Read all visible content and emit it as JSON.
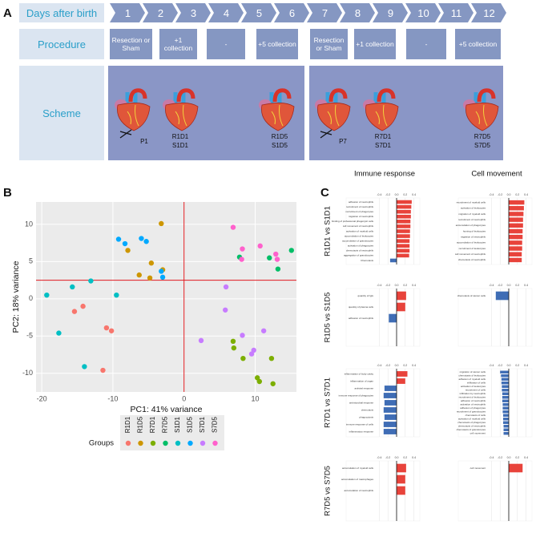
{
  "panel_letters": [
    "A",
    "B",
    "C"
  ],
  "panel_a": {
    "row_labels": [
      "Days after birth",
      "Procedure",
      "Scheme"
    ],
    "days": [
      "1",
      "2",
      "3",
      "4",
      "5",
      "6",
      "7",
      "8",
      "9",
      "10",
      "11",
      "12"
    ],
    "procedure": [
      "Resection or Sham",
      "+1 collection",
      "-",
      "+5 collection",
      "Resection or Sham",
      "+1 collection",
      "-",
      "+5 collection"
    ],
    "scheme_labels": [
      "P1",
      "R1D1",
      "S1D1",
      "R1D5",
      "S1D5",
      "P7",
      "R7D1",
      "S7D1",
      "R7D5",
      "S7D5"
    ]
  },
  "panel_c": {
    "columns": [
      "Immune response",
      "Cell movement"
    ],
    "rows": [
      "R1D1 vs S1D1",
      "R1D5 vs S1D5",
      "R7D1 vs S7D1",
      "R7D5 vs S7D5"
    ]
  },
  "chart_data": [
    {
      "type": "scatter",
      "xlabel": "PC1: 41% variance",
      "ylabel": "PC2: 18% variance",
      "xlim": [
        -20.8,
        15.8
      ],
      "ylim": [
        -12.5,
        13
      ],
      "xticks": [
        -20,
        -10,
        0,
        10
      ],
      "yticks": [
        -10,
        -5,
        0,
        5,
        10
      ],
      "grid": true,
      "reference_lines": {
        "x": [
          0
        ],
        "y": [
          2.5
        ],
        "color": "#e0191f"
      },
      "legend_title": "Groups",
      "legend_position": "bottom",
      "series": [
        {
          "name": "R1D1",
          "color": "#F8766D",
          "x": [
            -15.4,
            -14.2,
            -10.9,
            -10.2,
            -11.4
          ],
          "values": [
            -1.7,
            -1.0,
            -3.9,
            -4.3,
            -9.6
          ]
        },
        {
          "name": "R1D5",
          "color": "#CD9600",
          "x": [
            -7.9,
            -3.2,
            -4.6,
            -6.3,
            -4.8,
            -3.0
          ],
          "values": [
            6.5,
            10.1,
            4.8,
            3.2,
            2.8,
            3.9
          ]
        },
        {
          "name": "R7D1",
          "color": "#7CAE00",
          "x": [
            6.9,
            7.0,
            8.3,
            10.3,
            10.6,
            12.3,
            12.5
          ],
          "values": [
            -5.7,
            -6.6,
            -8.0,
            -10.6,
            -11.1,
            -8.0,
            -11.4
          ]
        },
        {
          "name": "R7D5",
          "color": "#00BE67",
          "x": [
            7.8,
            12.0,
            13.2,
            15.1
          ],
          "values": [
            5.6,
            5.5,
            4.0,
            6.5
          ]
        },
        {
          "name": "S1D1",
          "color": "#00BFC4",
          "x": [
            -19.3,
            -17.6,
            -15.7,
            -13.1,
            -9.5,
            -14.0
          ],
          "values": [
            0.5,
            -4.6,
            1.6,
            2.4,
            0.5,
            -9.1
          ]
        },
        {
          "name": "S1D5",
          "color": "#00A9FF",
          "x": [
            -9.2,
            -8.3,
            -6.0,
            -5.3,
            -3.0,
            -3.2
          ],
          "values": [
            8.0,
            7.4,
            8.1,
            7.7,
            2.9,
            3.7
          ]
        },
        {
          "name": "S7D1",
          "color": "#C77CFF",
          "x": [
            5.9,
            5.8,
            2.4,
            8.2,
            11.2,
            9.8,
            9.5
          ],
          "values": [
            1.6,
            -1.5,
            -5.6,
            -4.9,
            -4.3,
            -6.9,
            -7.4
          ]
        },
        {
          "name": "S7D5",
          "color": "#FF61CC",
          "x": [
            6.9,
            8.2,
            8.1,
            10.7,
            12.9,
            13.1
          ],
          "values": [
            9.6,
            6.7,
            5.3,
            7.1,
            6.0,
            5.3
          ]
        }
      ]
    },
    {
      "type": "barh",
      "color": "#e8433b",
      "negative_color": "#3f6db5",
      "xlim": [
        -0.5,
        0.5
      ],
      "xticks": [
        -0.4,
        -0.2,
        {
          "value": 0,
          "label": "0.0"
        },
        0.2,
        0.4
      ],
      "categories": [
        "adhesion of neutrophils",
        "recruitment of neutrophils",
        "recruitment of phagocytes",
        "migration of neutrophils",
        "binding of professional phagocytic cells",
        "cell movement of neutrophils",
        "activation of myeloid cells",
        "accumulation of leukocytes",
        "accumulation of granulocytes",
        "activation of phagocytes",
        "chemotaxis of neutrophils",
        "aggregation of granulocytes",
        "Chemotaxis"
      ],
      "values": [
        0.35,
        0.34,
        0.33,
        0.33,
        0.32,
        0.32,
        0.31,
        0.31,
        0.3,
        0.3,
        0.3,
        0.29,
        -0.15
      ]
    },
    {
      "type": "barh",
      "color": "#e8433b",
      "negative_color": "#3f6db5",
      "xlim": [
        -0.5,
        0.5
      ],
      "xticks": [
        -0.4,
        -0.2,
        {
          "value": 0,
          "label": "0.0"
        },
        0.2,
        0.4
      ],
      "categories": [
        "recruitment of myeloid cells",
        "activation of leukocytes",
        "migration of myeloid cells",
        "recruitment of neutrophils",
        "accumulation of phagocytes",
        "homing of leukocytes",
        "migration of neutrophils",
        "accumulation of leukocytes",
        "recruitment of leukocytes",
        "cell movement of neutrophils",
        "chemotaxis of neutrophils"
      ],
      "values": [
        0.36,
        0.35,
        0.34,
        0.33,
        0.33,
        0.32,
        0.32,
        0.31,
        0.31,
        0.3,
        0.3
      ]
    },
    {
      "type": "barh",
      "color": "#e8433b",
      "negative_color": "#3f6db5",
      "xlim": [
        -0.5,
        0.5
      ],
      "xticks": [
        -0.4,
        -0.2,
        {
          "value": 0,
          "label": "0.0"
        },
        0.2,
        0.4
      ],
      "categories": [
        "quantity of IgG",
        "quantity of plasma cells",
        "adhesion of neutrophils"
      ],
      "values": [
        0.22,
        0.2,
        -0.18
      ]
    },
    {
      "type": "barh",
      "color": "#e8433b",
      "negative_color": "#3f6db5",
      "xlim": [
        -0.5,
        0.5
      ],
      "xticks": [
        -0.4,
        -0.2,
        {
          "value": 0,
          "label": "0.0"
        },
        0.2,
        0.4
      ],
      "categories": [
        "chemotaxis of cancer cells"
      ],
      "values": [
        -0.3
      ]
    },
    {
      "type": "barh",
      "color": "#e8433b",
      "negative_color": "#3f6db5",
      "xlim": [
        -0.5,
        0.5
      ],
      "xticks": [
        -0.4,
        -0.2,
        {
          "value": 0,
          "label": "0.0"
        },
        0.2,
        0.4
      ],
      "categories": [
        "inflammation of body cavity",
        "inflammation of organ",
        "antiviral response",
        "immune response of phagocytes",
        "antimicrobial response",
        "chemotaxis",
        "phagocytosis",
        "immune response of cells",
        "inflammatory response"
      ],
      "values": [
        0.25,
        0.2,
        -0.28,
        -0.3,
        -0.28,
        -0.3,
        -0.28,
        -0.3,
        -0.3
      ]
    },
    {
      "type": "barh",
      "color": "#e8433b",
      "negative_color": "#3f6db5",
      "xlim": [
        -0.5,
        0.5
      ],
      "xticks": [
        -0.4,
        -0.2,
        {
          "value": 0,
          "label": "0.0"
        },
        0.2,
        0.4
      ],
      "categories": [
        "migration of cancer cells",
        "chemotaxis of leukocytes",
        "adhesion of myeloid cells",
        "infiltration of cells",
        "activation of leukocytes",
        "recruitment of cells",
        "infiltration by neutrophils",
        "recruitment of leukocytes",
        "adhesion of neutrophils",
        "activation of neutrophils",
        "adhesion of phagocytes",
        "recruitment of granulocytes",
        "chemotaxis of cells",
        "activation of myeloid cells",
        "chemotaxis of phagocytes",
        "chemotaxis of neutrophils",
        "chemotaxis of granulocytes",
        "cell movement"
      ],
      "values": [
        -0.2,
        -0.18,
        -0.17,
        -0.17,
        -0.16,
        -0.16,
        -0.15,
        -0.15,
        -0.15,
        -0.14,
        -0.14,
        -0.14,
        -0.13,
        -0.13,
        -0.13,
        -0.12,
        -0.12,
        -0.12
      ]
    },
    {
      "type": "barh",
      "color": "#e8433b",
      "negative_color": "#3f6db5",
      "xlim": [
        -0.5,
        0.5
      ],
      "xticks": [
        -0.4,
        -0.2,
        {
          "value": 0,
          "label": "0.0"
        },
        0.2,
        0.4
      ],
      "categories": [
        "accumulation of myeloid cells",
        "accumulation of macrophages",
        "accumulation of neutrophils"
      ],
      "values": [
        0.22,
        0.2,
        0.2
      ]
    },
    {
      "type": "barh",
      "color": "#e8433b",
      "negative_color": "#3f6db5",
      "xlim": [
        -0.5,
        0.5
      ],
      "xticks": [
        -0.4,
        -0.2,
        {
          "value": 0,
          "label": "0.0"
        },
        0.2,
        0.4
      ],
      "categories": [
        "cell movement"
      ],
      "values": [
        0.32
      ]
    }
  ]
}
